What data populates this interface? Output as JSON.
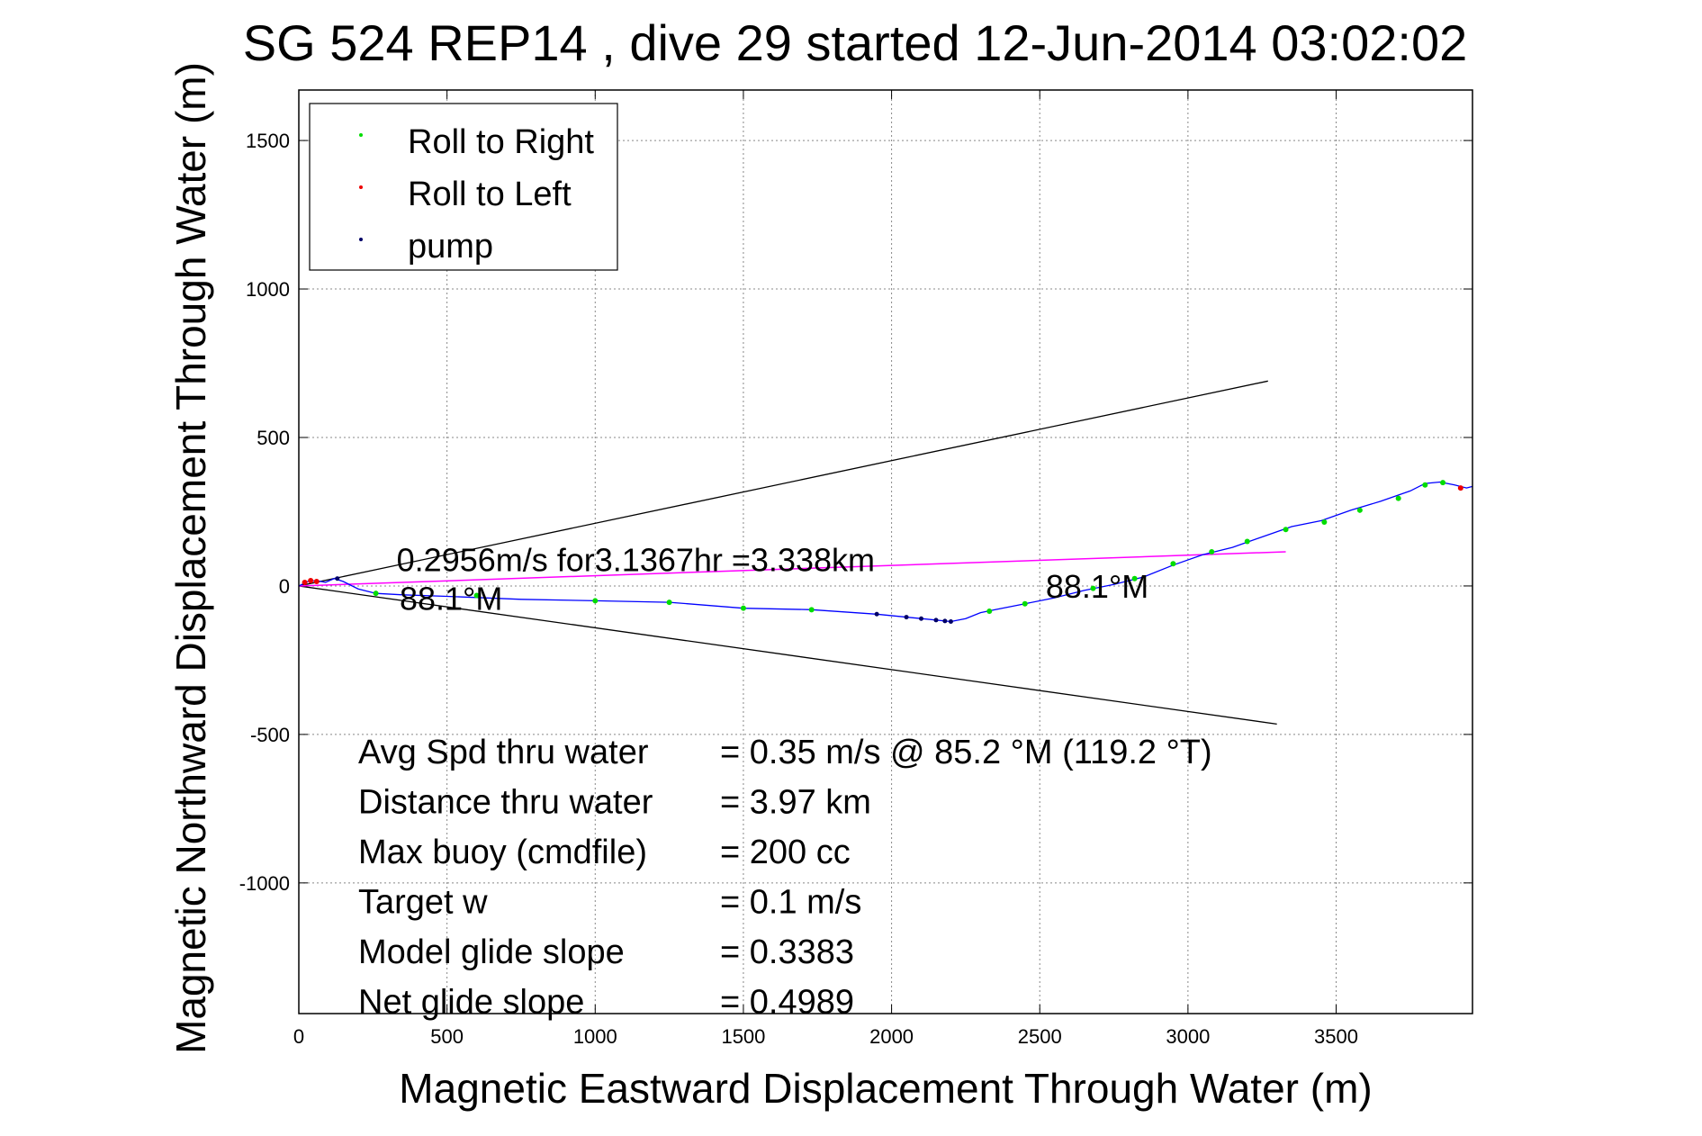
{
  "chart_data": {
    "type": "line",
    "title": "SG 524   REP14  , dive 29 started 12-Jun-2014 03:02:02",
    "xlabel": "Magnetic Eastward Displacement Through Water (m)",
    "ylabel": "Magnetic Northward Displacement Through Water (m)",
    "xlim": [
      0,
      3960
    ],
    "ylim": [
      -1440,
      1670
    ],
    "xticks": [
      0,
      500,
      1000,
      1500,
      2000,
      2500,
      3000,
      3500
    ],
    "yticks": [
      -1000,
      -500,
      0,
      500,
      1000,
      1500
    ],
    "grid": true,
    "legend": {
      "placement": "top-left",
      "entries": [
        {
          "label": "Roll to Right",
          "color": "#00dd00"
        },
        {
          "label": "Roll to Left",
          "color": "#ee0000"
        },
        {
          "label": "pump",
          "color": "#000066"
        }
      ]
    },
    "track": {
      "color": "#0000ff",
      "points": [
        [
          0,
          0
        ],
        [
          30,
          15
        ],
        [
          60,
          18
        ],
        [
          90,
          12
        ],
        [
          120,
          25
        ],
        [
          150,
          15
        ],
        [
          200,
          -10
        ],
        [
          260,
          -25
        ],
        [
          350,
          -30
        ],
        [
          500,
          -35
        ],
        [
          750,
          -45
        ],
        [
          1000,
          -50
        ],
        [
          1250,
          -55
        ],
        [
          1500,
          -75
        ],
        [
          1730,
          -80
        ],
        [
          1950,
          -95
        ],
        [
          2100,
          -110
        ],
        [
          2200,
          -120
        ],
        [
          2250,
          -110
        ],
        [
          2300,
          -90
        ],
        [
          2350,
          -80
        ],
        [
          2450,
          -60
        ],
        [
          2550,
          -40
        ],
        [
          2650,
          -15
        ],
        [
          2750,
          5
        ],
        [
          2850,
          30
        ],
        [
          2950,
          70
        ],
        [
          3050,
          105
        ],
        [
          3150,
          130
        ],
        [
          3250,
          165
        ],
        [
          3350,
          200
        ],
        [
          3450,
          220
        ],
        [
          3550,
          255
        ],
        [
          3650,
          285
        ],
        [
          3750,
          320
        ],
        [
          3800,
          345
        ],
        [
          3850,
          350
        ],
        [
          3900,
          340
        ],
        [
          3940,
          330
        ],
        [
          3960,
          335
        ]
      ]
    },
    "roll_right_points": [
      [
        260,
        -25
      ],
      [
        600,
        -32
      ],
      [
        1000,
        -50
      ],
      [
        1250,
        -55
      ],
      [
        1500,
        -75
      ],
      [
        1730,
        -80
      ],
      [
        2330,
        -85
      ],
      [
        2450,
        -60
      ],
      [
        2680,
        -8
      ],
      [
        2820,
        25
      ],
      [
        2950,
        75
      ],
      [
        3080,
        115
      ],
      [
        3200,
        150
      ],
      [
        3330,
        190
      ],
      [
        3460,
        215
      ],
      [
        3580,
        255
      ],
      [
        3710,
        295
      ],
      [
        3800,
        340
      ],
      [
        3860,
        348
      ]
    ],
    "roll_left_points": [
      [
        20,
        12
      ],
      [
        40,
        18
      ],
      [
        60,
        15
      ],
      [
        3920,
        330
      ]
    ],
    "pump_points": [
      [
        130,
        25
      ],
      [
        1950,
        -95
      ],
      [
        2050,
        -105
      ],
      [
        2100,
        -110
      ],
      [
        2150,
        -115
      ],
      [
        2180,
        -118
      ],
      [
        2200,
        -120
      ]
    ],
    "heading_lines": {
      "color": "#000000",
      "upper": [
        [
          0,
          0
        ],
        [
          3270,
          690
        ]
      ],
      "lower": [
        [
          0,
          0
        ],
        [
          3300,
          -465
        ]
      ]
    },
    "drift_line": {
      "color": "#ff00ff",
      "points": [
        [
          0,
          0
        ],
        [
          3330,
          115
        ]
      ]
    },
    "annotations": [
      {
        "text": "0.2956m/s for3.1367hr =3.338km",
        "x": 330,
        "y": 50
      },
      {
        "text": "88.1°M",
        "x": 340,
        "y": -80
      },
      {
        "text": "88.1°M",
        "x": 2520,
        "y": -40
      }
    ],
    "stats": [
      {
        "label": "Avg Spd thru water",
        "value": "=  0.35 m/s @  85.2 °M (119.2 °T)"
      },
      {
        "label": "Distance thru water",
        "value": "=  3.97 km"
      },
      {
        "label": "Max buoy (cmdfile)",
        "value": "= 200 cc"
      },
      {
        "label": "Target w",
        "value": "= 0.1 m/s"
      },
      {
        "label": "Model glide slope",
        "value": "= 0.3383"
      },
      {
        "label": "Net glide slope",
        "value": "= 0.4989"
      }
    ]
  }
}
